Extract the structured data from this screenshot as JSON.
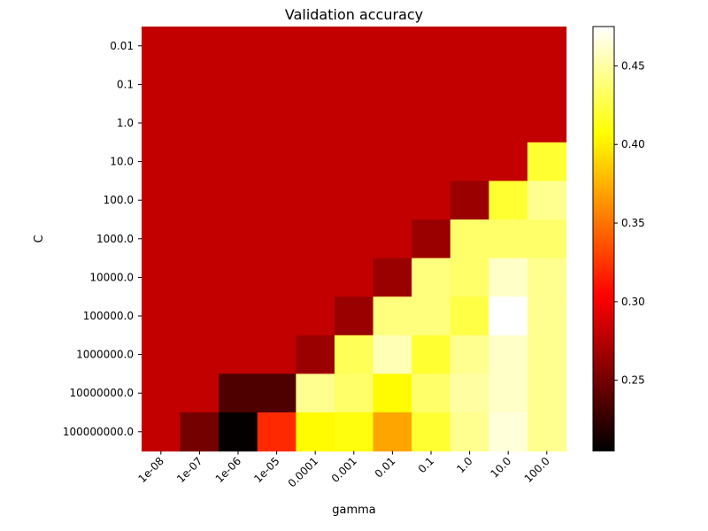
{
  "chart_data": {
    "type": "heatmap",
    "title": "Validation accuracy",
    "xlabel": "gamma",
    "ylabel": "C",
    "x_categories": [
      "1e-08",
      "1e-07",
      "1e-06",
      "1e-05",
      "0.0001",
      "0.001",
      "0.01",
      "0.1",
      "1.0",
      "10.0",
      "100.0"
    ],
    "y_categories": [
      "0.01",
      "0.1",
      "1.0",
      "10.0",
      "100.0",
      "1000.0",
      "10000.0",
      "100000.0",
      "1000000.0",
      "10000000.0",
      "100000000.0"
    ],
    "values": [
      [
        0.28,
        0.28,
        0.28,
        0.28,
        0.28,
        0.28,
        0.28,
        0.28,
        0.28,
        0.28,
        0.28
      ],
      [
        0.28,
        0.28,
        0.28,
        0.28,
        0.28,
        0.28,
        0.28,
        0.28,
        0.28,
        0.28,
        0.28
      ],
      [
        0.28,
        0.28,
        0.28,
        0.28,
        0.28,
        0.28,
        0.28,
        0.28,
        0.28,
        0.28,
        0.28
      ],
      [
        0.28,
        0.28,
        0.28,
        0.28,
        0.28,
        0.28,
        0.28,
        0.28,
        0.28,
        0.28,
        0.42
      ],
      [
        0.28,
        0.28,
        0.28,
        0.28,
        0.28,
        0.28,
        0.28,
        0.28,
        0.265,
        0.42,
        0.445
      ],
      [
        0.28,
        0.28,
        0.28,
        0.28,
        0.28,
        0.28,
        0.28,
        0.265,
        0.435,
        0.435,
        0.435
      ],
      [
        0.28,
        0.28,
        0.28,
        0.28,
        0.28,
        0.28,
        0.265,
        0.44,
        0.435,
        0.46,
        0.445
      ],
      [
        0.28,
        0.28,
        0.28,
        0.28,
        0.28,
        0.265,
        0.44,
        0.44,
        0.425,
        0.475,
        0.445
      ],
      [
        0.28,
        0.28,
        0.28,
        0.28,
        0.265,
        0.43,
        0.455,
        0.42,
        0.445,
        0.46,
        0.445
      ],
      [
        0.28,
        0.28,
        0.235,
        0.235,
        0.445,
        0.435,
        0.405,
        0.435,
        0.45,
        0.46,
        0.445
      ],
      [
        0.28,
        0.25,
        0.207,
        0.32,
        0.405,
        0.41,
        0.37,
        0.42,
        0.445,
        0.465,
        0.445
      ]
    ],
    "colormap": "hot",
    "vmin": 0.205,
    "vmax": 0.475,
    "colorbar_ticks": [
      "0.25",
      "0.30",
      "0.35",
      "0.40",
      "0.45"
    ],
    "colorbar_position": "right",
    "grid": false
  }
}
